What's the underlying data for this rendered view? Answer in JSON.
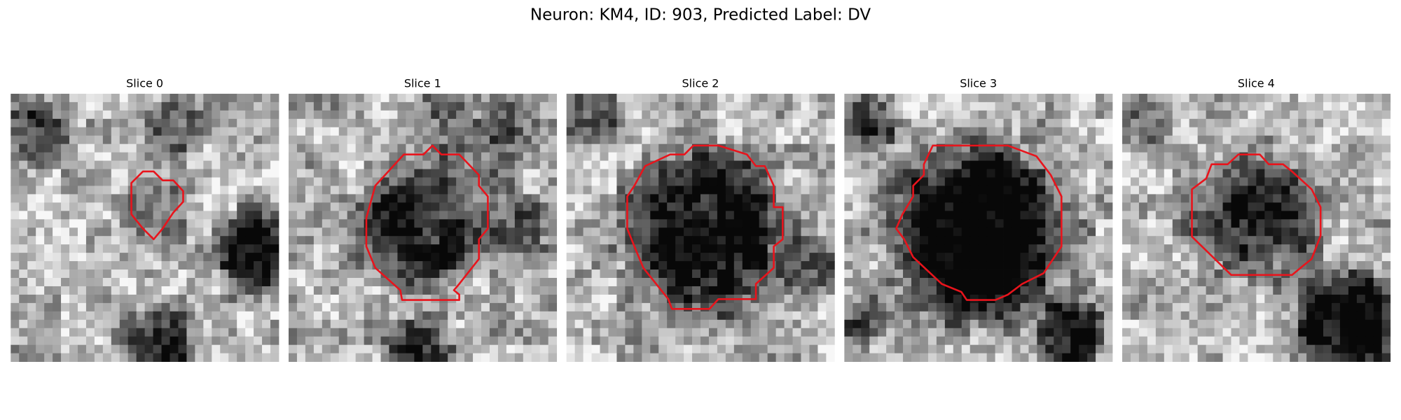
{
  "title": "Neuron: KM4, ID: 903, Predicted Label: DV",
  "panels": [
    {
      "title": "Slice 0"
    },
    {
      "title": "Slice 1"
    },
    {
      "title": "Slice 2"
    },
    {
      "title": "Slice 3"
    },
    {
      "title": "Slice 4"
    }
  ]
}
